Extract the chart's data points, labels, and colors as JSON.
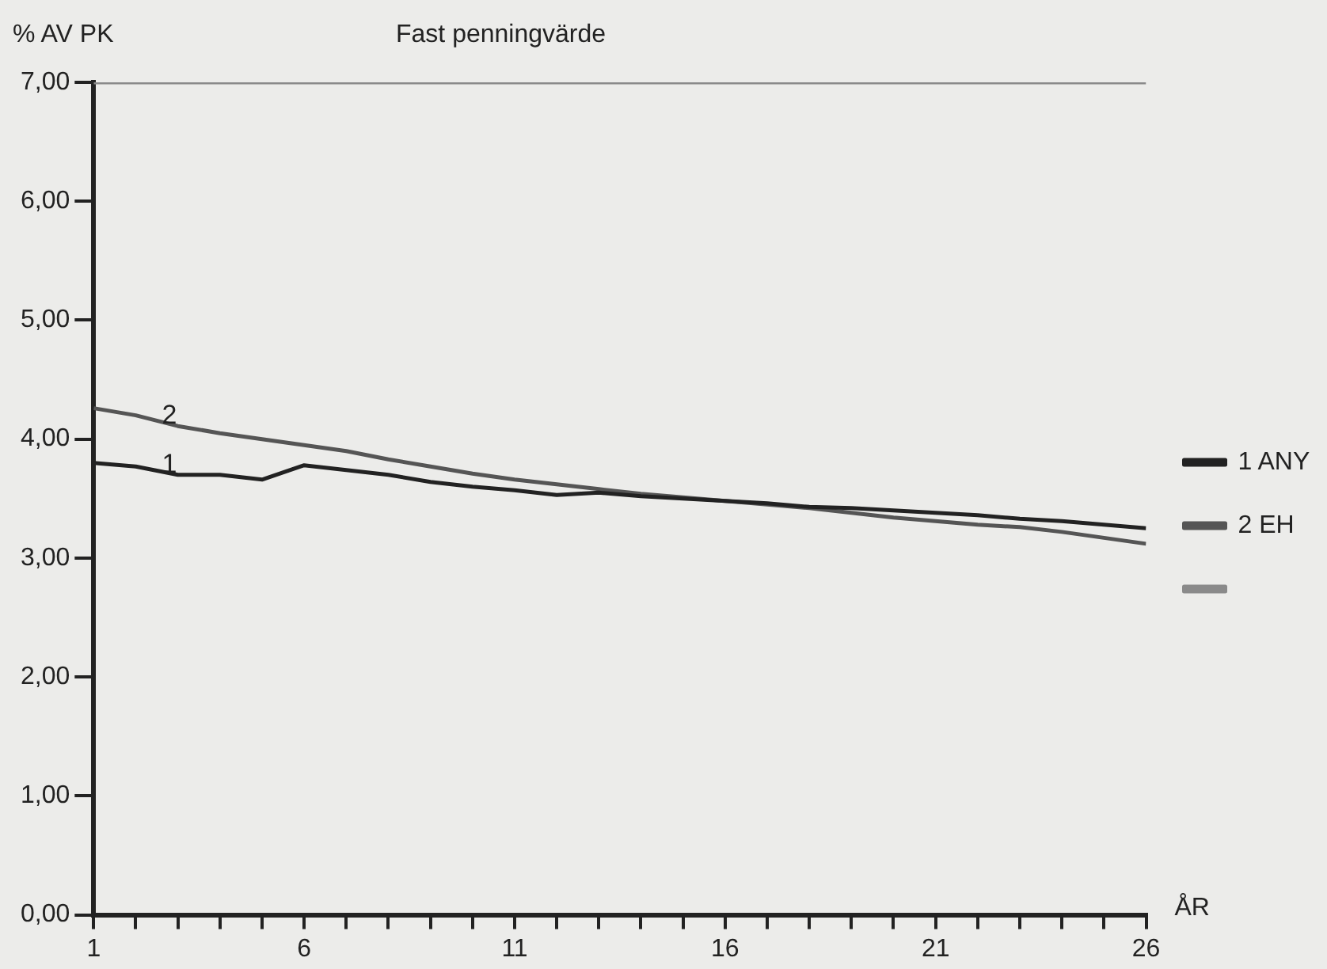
{
  "chart_data": {
    "type": "line",
    "title": "Fast penningvärde",
    "ylabel": "% AV PK",
    "xlabel": "ÅR",
    "x": [
      1,
      2,
      3,
      4,
      5,
      6,
      7,
      8,
      9,
      10,
      11,
      12,
      13,
      14,
      15,
      16,
      17,
      18,
      19,
      20,
      21,
      22,
      23,
      24,
      25,
      26
    ],
    "xlim": [
      1,
      26
    ],
    "xticks": [
      1,
      {
        "value": 2,
        "label": null
      },
      {
        "value": 3,
        "label": null
      },
      {
        "value": 4,
        "label": null
      },
      {
        "value": 5,
        "label": null
      },
      6,
      {
        "value": 7,
        "label": null
      },
      {
        "value": 8,
        "label": null
      },
      {
        "value": 9,
        "label": null
      },
      {
        "value": 10,
        "label": null
      },
      11,
      {
        "value": 12,
        "label": null
      },
      {
        "value": 13,
        "label": null
      },
      {
        "value": 14,
        "label": null
      },
      {
        "value": 15,
        "label": null
      },
      16,
      {
        "value": 17,
        "label": null
      },
      {
        "value": 18,
        "label": null
      },
      {
        "value": 19,
        "label": null
      },
      {
        "value": 20,
        "label": null
      },
      21,
      {
        "value": 22,
        "label": null
      },
      {
        "value": 23,
        "label": null
      },
      {
        "value": 24,
        "label": null
      },
      {
        "value": 25,
        "label": null
      },
      26
    ],
    "ylim": [
      0,
      7
    ],
    "yticks": [
      {
        "value": 0,
        "label": "0,00"
      },
      {
        "value": 1,
        "label": "1,00"
      },
      {
        "value": 2,
        "label": "2,00"
      },
      {
        "value": 3,
        "label": "3,00"
      },
      {
        "value": 4,
        "label": "4,00"
      },
      {
        "value": 5,
        "label": "5,00"
      },
      {
        "value": 6,
        "label": "6,00"
      },
      {
        "value": 7,
        "label": "7,00"
      }
    ],
    "series": [
      {
        "name": "1 ANY",
        "color": "#222222",
        "values": [
          3.8,
          3.77,
          3.7,
          3.7,
          3.66,
          3.78,
          3.74,
          3.7,
          3.64,
          3.6,
          3.57,
          3.53,
          3.55,
          3.52,
          3.5,
          3.48,
          3.46,
          3.43,
          3.42,
          3.4,
          3.38,
          3.36,
          3.33,
          3.31,
          3.28,
          3.25
        ]
      },
      {
        "name": "2 EH",
        "color": "#555555",
        "values": [
          4.26,
          4.2,
          4.11,
          4.05,
          4.0,
          3.95,
          3.9,
          3.83,
          3.77,
          3.71,
          3.66,
          3.62,
          3.58,
          3.54,
          3.51,
          3.48,
          3.45,
          3.42,
          3.38,
          3.34,
          3.31,
          3.28,
          3.26,
          3.22,
          3.17,
          3.12
        ]
      },
      {
        "color": "#8a8a8a",
        "values": [
          7,
          7,
          7,
          7,
          7,
          7,
          7,
          7,
          7,
          7,
          7,
          7,
          7,
          7,
          7,
          7,
          7,
          7,
          7,
          7,
          7,
          7,
          7,
          7,
          7,
          7
        ]
      }
    ],
    "annotations": [
      {
        "text": "1",
        "x": 2.8,
        "y": 3.71
      },
      {
        "text": "2",
        "x": 2.8,
        "y": 4.12
      }
    ],
    "grid": false,
    "legend": "right",
    "marker": "none"
  }
}
